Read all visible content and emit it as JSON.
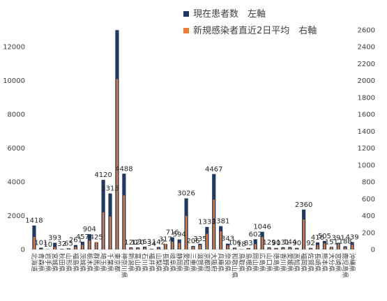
{
  "chart_data": {
    "type": "bar",
    "title": "",
    "xlabel": "",
    "ylabel": "",
    "categories": [
      "北海道",
      "青森県",
      "岩手県",
      "宮城県",
      "秋田県",
      "山形県",
      "福島県",
      "茨城県",
      "栃木県",
      "群馬県",
      "埼玉県",
      "千葉県",
      "東京都",
      "神奈川県",
      "新潟県",
      "富山県",
      "石川県",
      "福井県",
      "山梨県",
      "長野県",
      "岐阜県",
      "静岡県",
      "愛知県",
      "三重県",
      "滋賀県",
      "京都府",
      "大阪府",
      "兵庫県",
      "奈良県",
      "和歌山県",
      "鳥取県",
      "島根県",
      "岡山県",
      "広島県",
      "山口県",
      "徳島県",
      "香川県",
      "愛媛県",
      "高知県",
      "福岡県",
      "佐賀県",
      "長崎県",
      "熊本県",
      "大分県",
      "宮崎県",
      "鹿児島県",
      "沖縄県"
    ],
    "series": [
      {
        "name": "現在患者数　左軸",
        "axis": "left",
        "color": "#1F3864",
        "values": [
          1418,
          101,
          10,
          393,
          32,
          65,
          261,
          457,
          904,
          425,
          4120,
          3315,
          12990,
          4488,
          120,
          120,
          163,
          34,
          142,
          317,
          716,
          594,
          3026,
          206,
          335,
          1333,
          4467,
          1381,
          343,
          106,
          18,
          83,
          602,
          1046,
          129,
          90,
          131,
          144,
          90,
          2360,
          92,
          416,
          505,
          151,
          391,
          188,
          439
        ]
      },
      {
        "name": "新規感染者直近2日平均　右軸",
        "axis": "right",
        "color": "#ED7D31",
        "values": [
          148,
          5,
          1,
          28,
          2,
          6,
          31,
          55,
          105,
          90,
          440,
          390,
          2020,
          640,
          17,
          15,
          20,
          3,
          14,
          69,
          91,
          77,
          398,
          31,
          51,
          185,
          590,
          215,
          48,
          13,
          2,
          12,
          64,
          148,
          18,
          11,
          14,
          18,
          8,
          355,
          13,
          53,
          73,
          25,
          68,
          23,
          55
        ]
      }
    ],
    "data_labels_shown": [
      1418,
      101,
      10,
      393,
      32,
      65,
      261,
      457,
      904,
      425,
      4120,
      3315,
      4488,
      120,
      120,
      163,
      34,
      142,
      317,
      716,
      594,
      3026,
      206,
      335,
      1333,
      4467,
      1381,
      343,
      106,
      18,
      83,
      602,
      1046,
      129,
      90,
      131,
      144,
      90,
      2360,
      92,
      416,
      505,
      151,
      391,
      188,
      439
    ],
    "y_left": {
      "ylim": [
        0,
        13000
      ],
      "ticks": [
        "0",
        "2000",
        "4000",
        "6000",
        "8000",
        "10000",
        "12000"
      ]
    },
    "y_right": {
      "ylim": [
        0,
        2600
      ],
      "ticks": [
        "0",
        "200",
        "400",
        "600",
        "800",
        "1000",
        "1200",
        "1400",
        "1600",
        "1800",
        "2000",
        "2200",
        "2400",
        "2600"
      ]
    },
    "legend": {
      "position": "top-right",
      "items": [
        {
          "label": "現在患者数　左軸",
          "color": "#1F3864"
        },
        {
          "label": "新規感染者直近2日平均　右軸",
          "color": "#ED7D31"
        }
      ]
    },
    "grid": false
  }
}
